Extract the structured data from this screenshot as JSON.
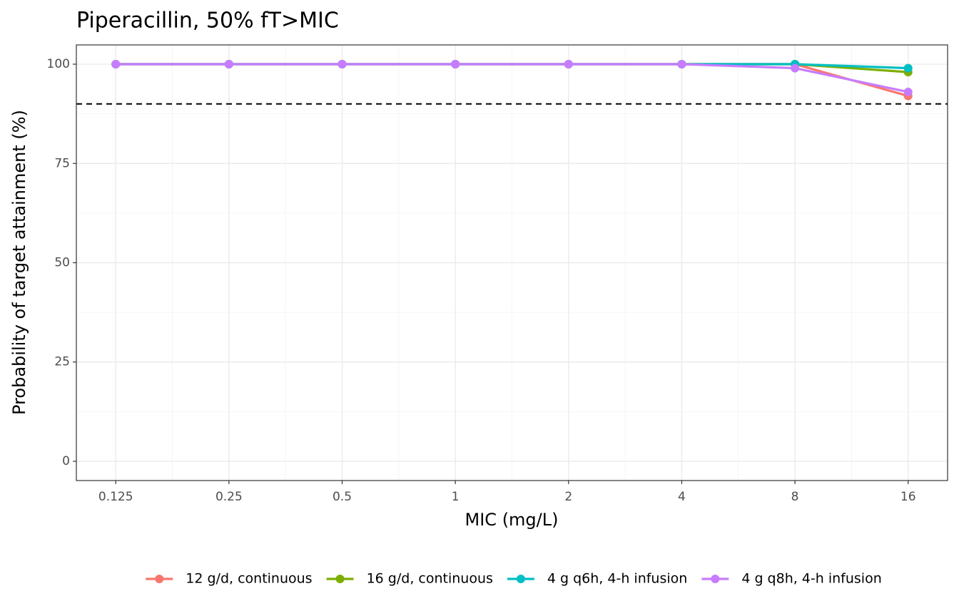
{
  "chart_data": {
    "type": "line",
    "title": "Piperacillin, 50% fT>MIC",
    "x_label": "MIC (mg/L)",
    "y_label": "Probability of target attainment (%)",
    "x": [
      0.125,
      0.25,
      0.5,
      1,
      2,
      4,
      8,
      16
    ],
    "x_scale": "log",
    "xlim": [
      0.0982,
      20.37
    ],
    "xticks": [
      0.125,
      0.25,
      0.5,
      1,
      2,
      4,
      8,
      16
    ],
    "ylim": [
      -4.85,
      104.85
    ],
    "yticks": [
      0,
      25,
      50,
      75,
      100
    ],
    "grid": true,
    "hline": 90,
    "legend_position": "bottom",
    "series": [
      {
        "name": "12 g/d, continuous",
        "color": "#F8766D",
        "values": [
          100,
          100,
          100,
          100,
          100,
          100,
          100,
          92
        ]
      },
      {
        "name": "16 g/d, continuous",
        "color": "#7CAE00",
        "values": [
          100,
          100,
          100,
          100,
          100,
          100,
          100,
          98
        ]
      },
      {
        "name": "4 g q6h, 4-h infusion",
        "color": "#00BFC4",
        "values": [
          100,
          100,
          100,
          100,
          100,
          100,
          100,
          99
        ]
      },
      {
        "name": "4 g q8h, 4-h infusion",
        "color": "#C77CFF",
        "values": [
          100,
          100,
          100,
          100,
          100,
          100,
          99,
          93
        ]
      }
    ]
  }
}
